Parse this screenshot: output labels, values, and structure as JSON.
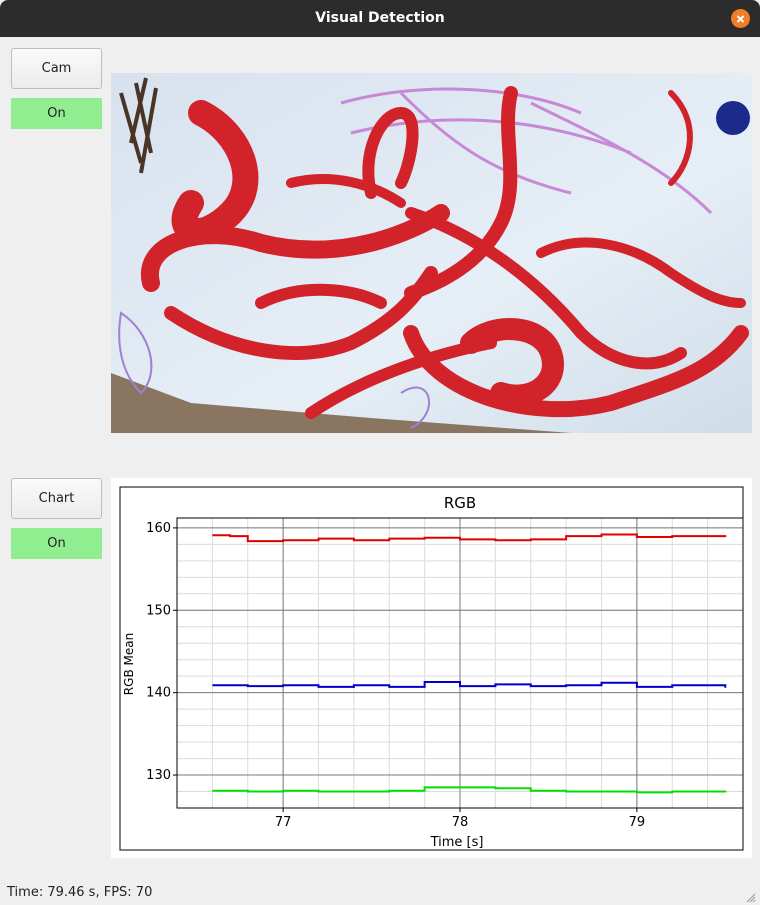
{
  "window": {
    "title": "Visual Detection"
  },
  "controls": {
    "cam_button": "Cam",
    "cam_state": "On",
    "chart_button": "Chart",
    "chart_state": "On"
  },
  "status_bar": {
    "text": "Time: 79.46 s, FPS: 70"
  },
  "colors": {
    "state_on": "#90ee90",
    "red_series": "#e00000",
    "green_series": "#00e000",
    "blue_series": "#0000cc"
  },
  "chart_data": {
    "type": "line",
    "title": "RGB",
    "xlabel": "Time [s]",
    "ylabel": "RGB Mean",
    "xlim": [
      76.4,
      79.6
    ],
    "ylim": [
      126,
      161.2
    ],
    "xticks": [
      77,
      78,
      79
    ],
    "yticks": [
      130,
      140,
      150,
      160
    ],
    "grid": true,
    "legend": "none",
    "series": [
      {
        "color": "#e00000",
        "x": [
          76.6,
          76.7,
          76.8,
          77.0,
          77.2,
          77.4,
          77.6,
          77.8,
          78.0,
          78.2,
          78.4,
          78.6,
          78.8,
          79.0,
          79.2,
          79.5
        ],
        "y": [
          159.1,
          159.0,
          158.4,
          158.5,
          158.7,
          158.5,
          158.7,
          158.8,
          158.6,
          158.5,
          158.6,
          159.0,
          159.2,
          158.9,
          159.0,
          158.9
        ]
      },
      {
        "color": "#0000cc",
        "x": [
          76.6,
          76.8,
          77.0,
          77.2,
          77.4,
          77.6,
          77.8,
          78.0,
          78.2,
          78.4,
          78.6,
          78.8,
          79.0,
          79.2,
          79.5
        ],
        "y": [
          140.9,
          140.8,
          140.9,
          140.7,
          140.9,
          140.7,
          141.3,
          140.8,
          141.0,
          140.8,
          140.9,
          141.2,
          140.7,
          140.9,
          140.6
        ]
      },
      {
        "color": "#00e000",
        "x": [
          76.6,
          76.8,
          77.0,
          77.2,
          77.4,
          77.6,
          77.8,
          78.0,
          78.2,
          78.4,
          78.6,
          78.8,
          79.0,
          79.2,
          79.5
        ],
        "y": [
          128.1,
          128.0,
          128.1,
          128.0,
          128.0,
          128.1,
          128.5,
          128.5,
          128.4,
          128.1,
          128.0,
          128.0,
          127.9,
          128.0,
          127.9
        ]
      }
    ]
  }
}
